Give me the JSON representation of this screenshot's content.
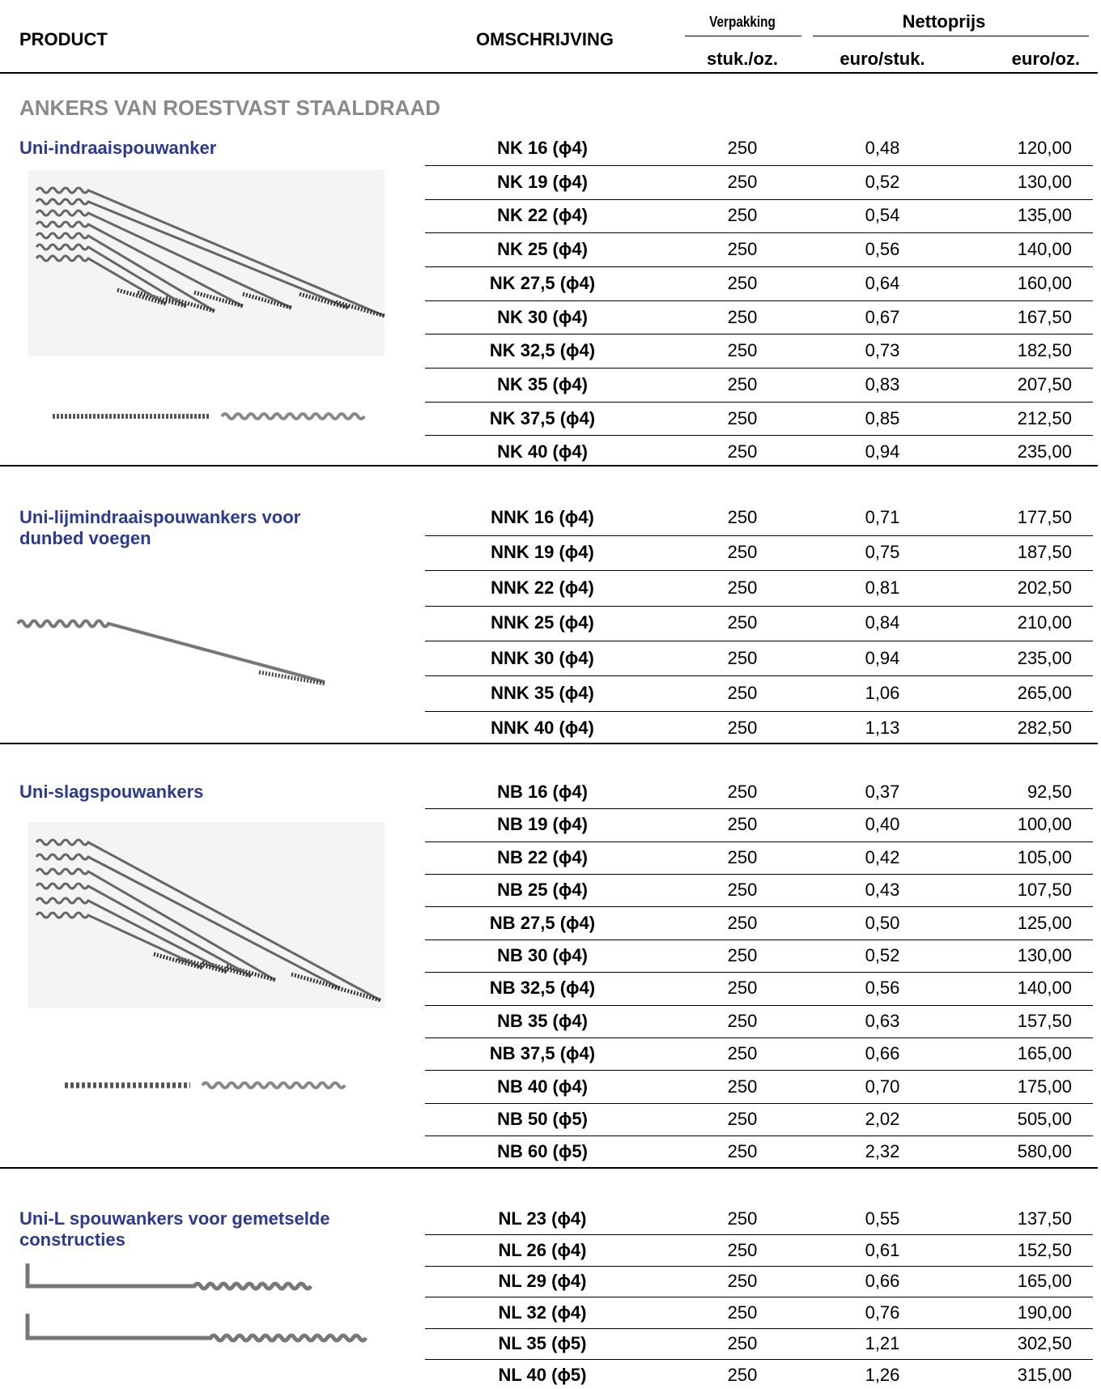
{
  "header": {
    "product": "PRODUCT",
    "description": "OMSCHRIJVING",
    "packaging": "Verpakking",
    "net_price": "Nettoprijs",
    "pack_unit": "stuk./oz.",
    "price_each": "euro/stuk.",
    "price_box": "euro/oz."
  },
  "section_title": "ANKERS VAN ROESTVAST STAALDRAAD",
  "groups": [
    {
      "name": "Uni-indraaispouwanker",
      "rows": [
        [
          "NK 16 (ϕ4)",
          "250",
          "0,48",
          "120,00"
        ],
        [
          "NK 19 (ϕ4)",
          "250",
          "0,52",
          "130,00"
        ],
        [
          "NK 22 (ϕ4)",
          "250",
          "0,54",
          "135,00"
        ],
        [
          "NK 25 (ϕ4)",
          "250",
          "0,56",
          "140,00"
        ],
        [
          "NK 27,5 (ϕ4)",
          "250",
          "0,64",
          "160,00"
        ],
        [
          "NK 30 (ϕ4)",
          "250",
          "0,67",
          "167,50"
        ],
        [
          "NK 32,5 (ϕ4)",
          "250",
          "0,73",
          "182,50"
        ],
        [
          "NK 35 (ϕ4)",
          "250",
          "0,83",
          "207,50"
        ],
        [
          "NK 37,5 (ϕ4)",
          "250",
          "0,85",
          "212,50"
        ],
        [
          "NK 40 (ϕ4)",
          "250",
          "0,94",
          "235,00"
        ]
      ]
    },
    {
      "name": "Uni-lijmindraaispouwankers voor dunbed voegen",
      "rows": [
        [
          "NNK 16 (ϕ4)",
          "250",
          "0,71",
          "177,50"
        ],
        [
          "NNK 19 (ϕ4)",
          "250",
          "0,75",
          "187,50"
        ],
        [
          "NNK 22 (ϕ4)",
          "250",
          "0,81",
          "202,50"
        ],
        [
          "NNK 25 (ϕ4)",
          "250",
          "0,84",
          "210,00"
        ],
        [
          "NNK 30 (ϕ4)",
          "250",
          "0,94",
          "235,00"
        ],
        [
          "NNK 35 (ϕ4)",
          "250",
          "1,06",
          "265,00"
        ],
        [
          "NNK 40 (ϕ4)",
          "250",
          "1,13",
          "282,50"
        ]
      ]
    },
    {
      "name": "Uni-slagspouwankers",
      "rows": [
        [
          "NB 16 (ϕ4)",
          "250",
          "0,37",
          "92,50"
        ],
        [
          "NB 19 (ϕ4)",
          "250",
          "0,40",
          "100,00"
        ],
        [
          "NB 22 (ϕ4)",
          "250",
          "0,42",
          "105,00"
        ],
        [
          "NB 25 (ϕ4)",
          "250",
          "0,43",
          "107,50"
        ],
        [
          "NB 27,5 (ϕ4)",
          "250",
          "0,50",
          "125,00"
        ],
        [
          "NB 30 (ϕ4)",
          "250",
          "0,52",
          "130,00"
        ],
        [
          "NB 32,5 (ϕ4)",
          "250",
          "0,56",
          "140,00"
        ],
        [
          "NB 35 (ϕ4)",
          "250",
          "0,63",
          "157,50"
        ],
        [
          "NB 37,5 (ϕ4)",
          "250",
          "0,66",
          "165,00"
        ],
        [
          "NB 40 (ϕ4)",
          "250",
          "0,70",
          "175,00"
        ],
        [
          "NB 50 (ϕ5)",
          "250",
          "2,02",
          "505,00"
        ],
        [
          "NB 60 (ϕ5)",
          "250",
          "2,32",
          "580,00"
        ]
      ]
    },
    {
      "name": "Uni-L spouwankers voor gemetselde constructies",
      "rows": [
        [
          "NL 23 (ϕ4)",
          "250",
          "0,55",
          "137,50"
        ],
        [
          "NL 26 (ϕ4)",
          "250",
          "0,61",
          "152,50"
        ],
        [
          "NL 29 (ϕ4)",
          "250",
          "0,66",
          "165,00"
        ],
        [
          "NL 32 (ϕ4)",
          "250",
          "0,76",
          "190,00"
        ],
        [
          "NL 35 (ϕ5)",
          "250",
          "1,21",
          "302,50"
        ],
        [
          "NL 40 (ϕ5)",
          "250",
          "1,26",
          "315,00"
        ]
      ]
    }
  ]
}
